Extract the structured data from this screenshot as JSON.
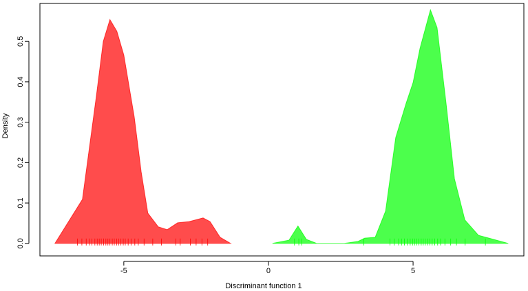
{
  "chart_data": {
    "type": "density",
    "xlabel": "Discriminant function 1",
    "ylabel": "Density",
    "xlim": [
      -7.9,
      8.83
    ],
    "ylim": [
      -0.031,
      0.594
    ],
    "xticks": [
      -5,
      0,
      5
    ],
    "yticks": [
      {
        "value": 0,
        "label": "0.0"
      },
      0.1,
      0.2,
      0.3,
      0.4,
      0.5
    ],
    "series": [
      {
        "color": "#ff0000",
        "x": [
          -7.38,
          -6.43,
          -5.95,
          -5.71,
          -5.48,
          -5.24,
          -5.0,
          -4.64,
          -4.4,
          -4.17,
          -3.81,
          -3.5,
          -3.14,
          -2.74,
          -2.26,
          -2.02,
          -1.67,
          -1.31
        ],
        "values": [
          0,
          0.109,
          0.364,
          0.5,
          0.554,
          0.525,
          0.466,
          0.313,
          0.177,
          0.075,
          0.041,
          0.034,
          0.051,
          0.054,
          0.063,
          0.054,
          0.015,
          0
        ],
        "rug": [
          -6.6,
          -6.45,
          -6.3,
          -6.2,
          -6.1,
          -6.0,
          -5.92,
          -5.85,
          -5.78,
          -5.7,
          -5.62,
          -5.55,
          -5.48,
          -5.4,
          -5.33,
          -5.25,
          -5.18,
          -5.1,
          -5.02,
          -4.95,
          -4.85,
          -4.75,
          -4.62,
          -4.5,
          -4.3,
          -4.0,
          -3.7,
          -3.2,
          -3.05,
          -2.7,
          -2.5,
          -2.3,
          -2.1
        ]
      },
      {
        "color": "#00ff00",
        "x": [
          0.14,
          0.71,
          1.02,
          1.31,
          1.67,
          2.62,
          3.1,
          3.33,
          3.69,
          4.05,
          4.4,
          4.76,
          5.0,
          5.24,
          5.6,
          5.83,
          6.14,
          6.43,
          6.79,
          7.26,
          7.62,
          8.29
        ],
        "values": [
          0,
          0.008,
          0.043,
          0.01,
          0,
          0,
          0.005,
          0.013,
          0.015,
          0.08,
          0.262,
          0.347,
          0.398,
          0.483,
          0.578,
          0.534,
          0.347,
          0.16,
          0.058,
          0.02,
          0.013,
          0
        ],
        "rug": [
          0.9,
          1.05,
          1.15,
          3.3,
          4.2,
          4.35,
          4.5,
          4.6,
          4.7,
          4.8,
          4.9,
          4.98,
          5.05,
          5.12,
          5.2,
          5.28,
          5.35,
          5.42,
          5.5,
          5.58,
          5.66,
          5.75,
          5.85,
          5.95,
          6.1,
          6.3,
          6.5,
          6.8,
          7.5
        ]
      }
    ]
  }
}
